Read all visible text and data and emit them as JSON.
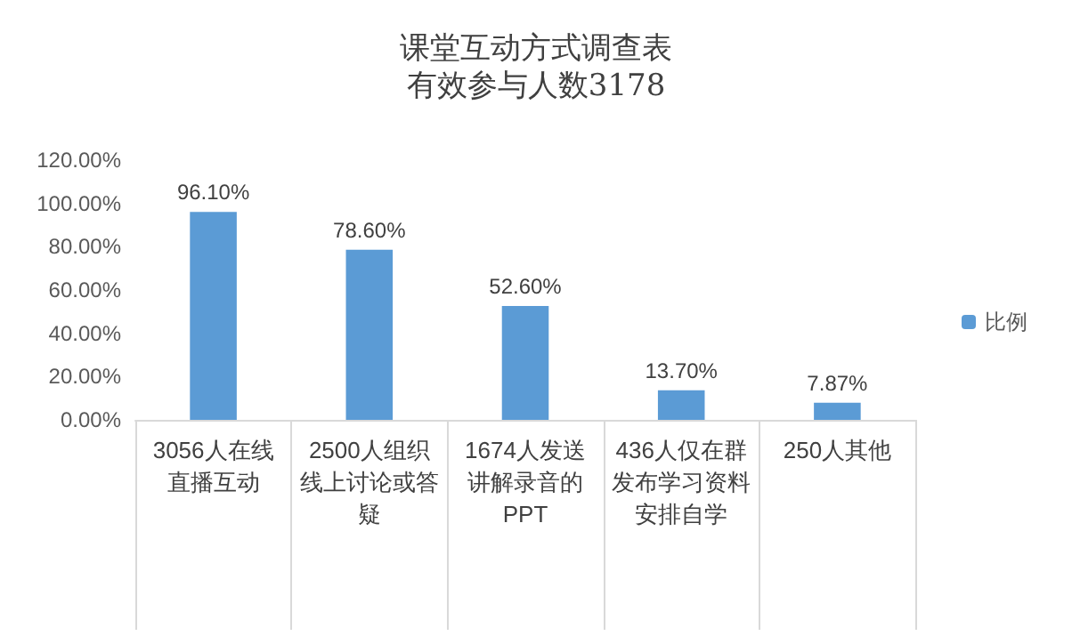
{
  "chart_data": {
    "type": "bar",
    "title": "课堂互动方式调查表",
    "subtitle": "有效参与人数3178",
    "categories": [
      "3056人在线直播互动",
      "2500人组织线上讨论或答疑",
      "1674人发送讲解录音的PPT",
      "436人仅在群发布学习资料安排自学",
      "250人其他"
    ],
    "series": [
      {
        "name": "比例",
        "color": "#5b9bd5",
        "values": [
          96.1,
          78.6,
          52.6,
          13.7,
          7.87
        ],
        "value_labels": [
          "96.10%",
          "78.60%",
          "52.60%",
          "13.70%",
          "7.87%"
        ]
      }
    ],
    "ylim": [
      0,
      120
    ],
    "yticks": [
      {
        "value": 0,
        "label": "0.00%"
      },
      {
        "value": 20,
        "label": "20.00%"
      },
      {
        "value": 40,
        "label": "40.00%"
      },
      {
        "value": 60,
        "label": "60.00%"
      },
      {
        "value": 80,
        "label": "80.00%"
      },
      {
        "value": 100,
        "label": "100.00%"
      },
      {
        "value": 120,
        "label": "120.00%"
      }
    ],
    "grid": false,
    "legend": "right"
  }
}
